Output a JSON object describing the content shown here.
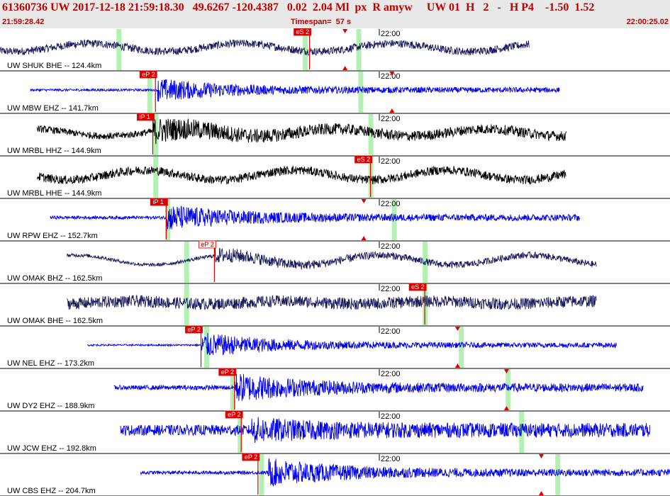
{
  "header": {
    "title": "61360736 UW 2017-12-18 21:59:18.30   49.6267 -120.4387   0.02  2.04 Ml  px  R amyw     UW 01  H   2   -   H P4    -1.50  1.52",
    "start_time": "21:59:28.42",
    "timespan": "Timespan=  57 s",
    "end_time": "22:00:25.02"
  },
  "colors": {
    "header_bg": "#e8e8e8",
    "header_text": "#c00000",
    "pick": "#dd0000",
    "highlight": "#b4f0b4",
    "trace_blue": "#0000ee",
    "trace_navy": "#1a1a5a",
    "trace_black": "#000000"
  },
  "time_tick_label": "22:00",
  "traces": [
    {
      "label": "UW SHUK BHE -- 124.4km",
      "color": "navy",
      "start": 0.0,
      "end": 0.79,
      "onset": 0.0,
      "amp": 0.55,
      "noise": 0.3,
      "lowfreq": 0.45,
      "burst": 0.3,
      "highlights": [
        0.177,
        0.455,
        0.535
      ],
      "picks": [
        {
          "text": "eS 2",
          "pos": 0.462,
          "light": false
        }
      ],
      "triangles": [
        0.515
      ]
    },
    {
      "label": "UW MBW EHZ -- 141.7km",
      "color": "blue",
      "start": 0.045,
      "end": 0.835,
      "onset": 0.235,
      "amp": 0.55,
      "noise": 0.12,
      "lowfreq": 0.0,
      "burst": 1.0,
      "highlights": [
        0.223,
        0.538
      ],
      "picks": [
        {
          "text": "eP 2",
          "pos": 0.232,
          "light": false
        }
      ],
      "triangles": [
        0.585
      ]
    },
    {
      "label": "UW MRBL HHZ -- 144.9km",
      "color": "black",
      "start": 0.055,
      "end": 0.845,
      "onset": 0.228,
      "amp": 0.55,
      "noise": 0.35,
      "lowfreq": 0.4,
      "burst": 0.9,
      "highlights": [
        0.232,
        0.553
      ],
      "picks": [
        {
          "text": "iP 1",
          "pos": 0.228,
          "light": false
        }
      ],
      "triangles": []
    },
    {
      "label": "UW MRBL HHE -- 144.9km",
      "color": "black",
      "start": 0.055,
      "end": 0.845,
      "onset": 0.0,
      "amp": 0.55,
      "noise": 0.35,
      "lowfreq": 0.55,
      "burst": 0.5,
      "highlights": [
        0.232,
        0.553
      ],
      "picks": [
        {
          "text": "eS 2",
          "pos": 0.553,
          "light": false
        }
      ],
      "triangles": []
    },
    {
      "label": "UW RPW EHZ -- 152.7km",
      "color": "blue",
      "start": 0.075,
      "end": 0.865,
      "onset": 0.248,
      "amp": 0.6,
      "noise": 0.15,
      "lowfreq": 0.0,
      "burst": 1.0,
      "highlights": [
        0.25,
        0.588
      ],
      "picks": [
        {
          "text": "iP 1",
          "pos": 0.248,
          "light": false
        }
      ],
      "triangles": [
        0.543
      ]
    },
    {
      "label": "UW OMAK BHZ -- 162.5km",
      "color": "navy",
      "start": 0.1,
      "end": 0.89,
      "onset": 0.32,
      "amp": 0.55,
      "noise": 0.18,
      "lowfreq": 0.55,
      "burst": 0.5,
      "highlights": [
        0.278,
        0.634
      ],
      "picks": [
        {
          "text": "eP 2",
          "pos": 0.32,
          "light": true
        }
      ],
      "triangles": []
    },
    {
      "label": "UW OMAK BHE -- 162.5km",
      "color": "navy",
      "start": 0.1,
      "end": 0.89,
      "onset": 0.0,
      "amp": 0.55,
      "noise": 0.5,
      "lowfreq": 0.15,
      "burst": 0.3,
      "highlights": [
        0.278,
        0.634
      ],
      "picks": [
        {
          "text": "eS 2",
          "pos": 0.634,
          "light": false
        }
      ],
      "triangles": []
    },
    {
      "label": "UW NEL EHZ -- 173.2km",
      "color": "blue",
      "start": 0.13,
      "end": 0.92,
      "onset": 0.3,
      "amp": 0.6,
      "noise": 0.08,
      "lowfreq": 0.0,
      "burst": 1.0,
      "highlights": [
        0.308,
        0.688
      ],
      "picks": [
        {
          "text": "eP 2",
          "pos": 0.3,
          "light": false
        }
      ],
      "triangles": [
        0.683
      ]
    },
    {
      "label": "UW DY2 EHZ -- 188.9km",
      "color": "blue",
      "start": 0.17,
      "end": 0.96,
      "onset": 0.35,
      "amp": 0.65,
      "noise": 0.2,
      "lowfreq": 0.0,
      "burst": 1.0,
      "highlights": [
        0.347,
        0.758
      ],
      "picks": [
        {
          "text": "eP 2",
          "pos": 0.35,
          "light": false
        }
      ],
      "triangles": [
        0.756
      ]
    },
    {
      "label": "UW JCW EHZ -- 192.8km",
      "color": "blue",
      "start": 0.18,
      "end": 0.97,
      "onset": 0.375,
      "amp": 0.65,
      "noise": 0.45,
      "lowfreq": 0.0,
      "burst": 0.6,
      "highlights": [
        0.358,
        0.778
      ],
      "picks": [
        {
          "text": "eP 2",
          "pos": 0.36,
          "light": false
        }
      ],
      "triangles": []
    },
    {
      "label": "UW CBS EHZ -- 204.7km",
      "color": "blue",
      "start": 0.21,
      "end": 1.0,
      "onset": 0.4,
      "amp": 0.65,
      "noise": 0.15,
      "lowfreq": 0.0,
      "burst": 1.0,
      "highlights": [
        0.39,
        0.832
      ],
      "picks": [
        {
          "text": "eP 2",
          "pos": 0.385,
          "light": false
        }
      ],
      "triangles": [
        0.808
      ]
    }
  ]
}
